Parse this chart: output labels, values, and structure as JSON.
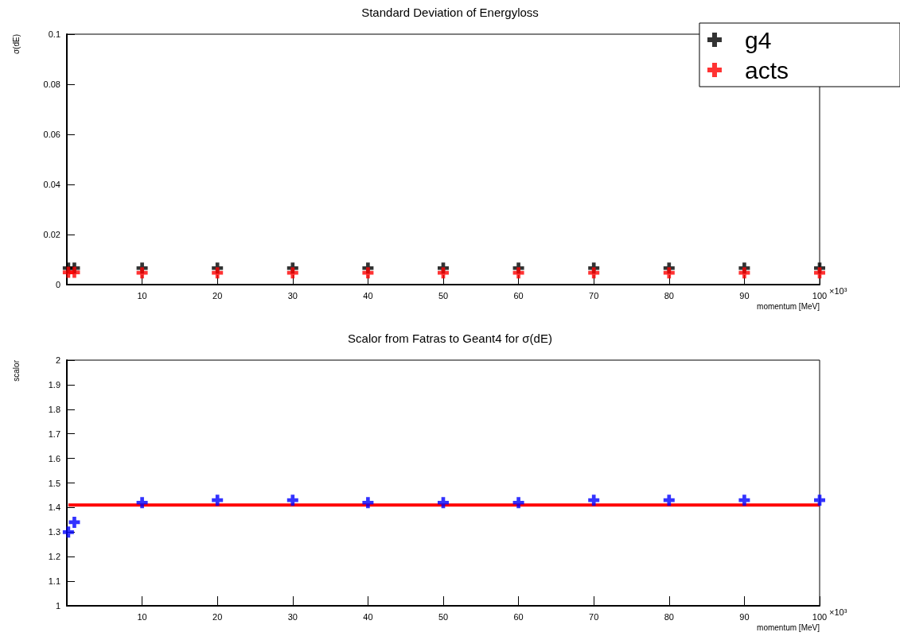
{
  "chart_data": [
    {
      "type": "scatter",
      "title": "Standard Deviation of Energyloss",
      "xlabel": "momentum [MeV]",
      "ylabel": "σ(dE)",
      "annotations": [
        "×10³"
      ],
      "marker": "cross",
      "legend": "top right",
      "xlim": [
        0,
        100
      ],
      "xticks": [
        10,
        20,
        30,
        40,
        50,
        60,
        70,
        80,
        90,
        100
      ],
      "ylim": [
        0,
        0.1
      ],
      "yticks": [
        0,
        0.02,
        0.04,
        0.06,
        0.08,
        0.1
      ],
      "x": [
        0.2,
        1,
        10,
        20,
        30,
        40,
        50,
        60,
        70,
        80,
        90,
        100
      ],
      "series": [
        {
          "name": "g4",
          "color": "#000000",
          "values": [
            0.0066,
            0.0066,
            0.0066,
            0.0066,
            0.0066,
            0.0066,
            0.0066,
            0.0066,
            0.0066,
            0.0066,
            0.0066,
            0.0066
          ]
        },
        {
          "name": "acts",
          "color": "#ff0000",
          "values": [
            0.0049,
            0.0049,
            0.0047,
            0.0047,
            0.0047,
            0.0047,
            0.0047,
            0.0047,
            0.0047,
            0.0047,
            0.0047,
            0.0047
          ]
        }
      ]
    },
    {
      "type": "scatter",
      "title": "Scalor from Fatras to Geant4 for σ(dE)",
      "xlabel": "momentum [MeV]",
      "ylabel": "scalor",
      "annotations": [
        "×10³"
      ],
      "marker": "cross",
      "xlim": [
        0,
        100
      ],
      "xticks": [
        10,
        20,
        30,
        40,
        50,
        60,
        70,
        80,
        90,
        100
      ],
      "ylim": [
        1,
        2
      ],
      "yticks": [
        1,
        1.1,
        1.2,
        1.3,
        1.4,
        1.5,
        1.6,
        1.7,
        1.8,
        1.9,
        2
      ],
      "x": [
        0.2,
        1,
        10,
        20,
        30,
        40,
        50,
        60,
        70,
        80,
        90,
        100
      ],
      "series": [
        {
          "color": "#0000ff",
          "values": [
            1.3,
            1.34,
            1.42,
            1.43,
            1.43,
            1.42,
            1.42,
            1.42,
            1.43,
            1.43,
            1.43,
            1.43
          ]
        },
        {
          "type": "line",
          "marker": "none",
          "color": "#ff0000",
          "x": [
            0.2,
            100
          ],
          "values": [
            1.41,
            1.41
          ]
        }
      ]
    }
  ]
}
